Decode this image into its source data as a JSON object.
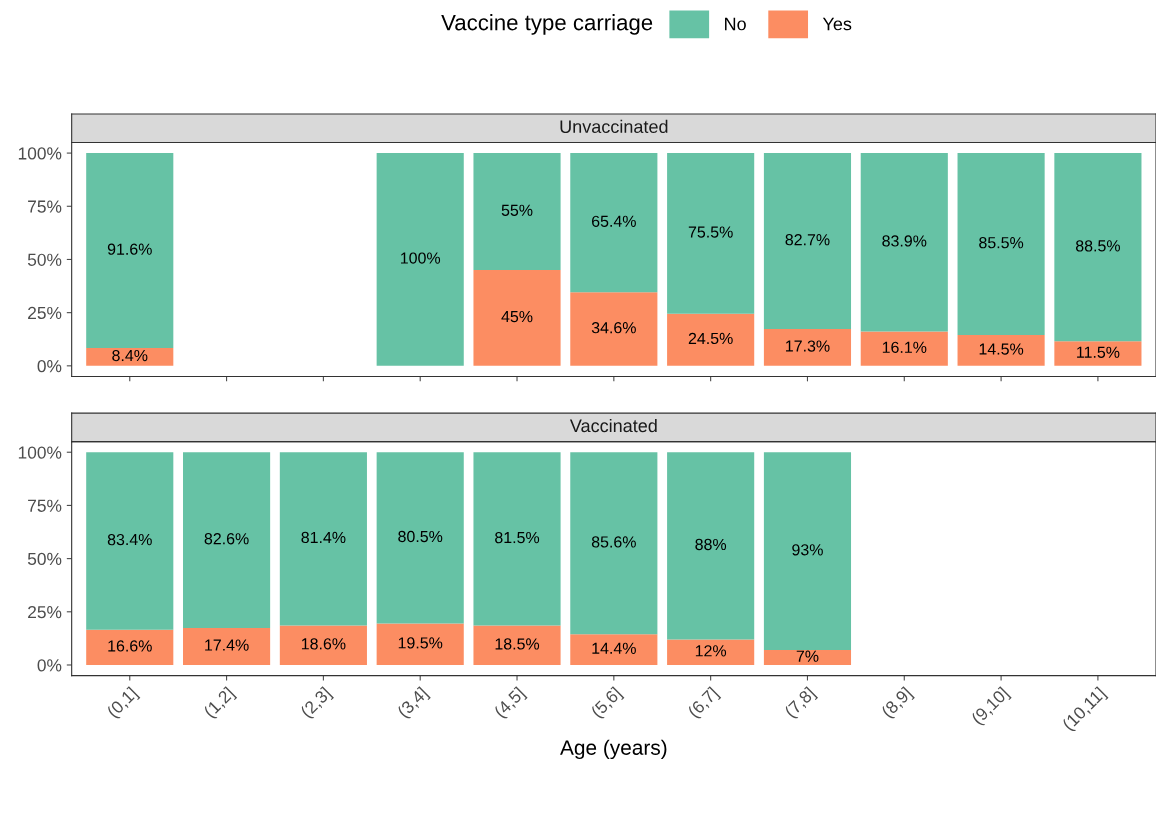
{
  "chart_data": [
    {
      "type": "bar",
      "title": "Unvaccinated",
      "stacked": true,
      "legend": "top",
      "legend_title": "Vaccine type carriage",
      "tick_labels": "y",
      "categories": [
        "(0,1]",
        "(1,2]",
        "(2,3]",
        "(3,4]",
        "(4,5]",
        "(5,6]",
        "(6,7]",
        "(7,8]",
        "(8,9]",
        "(9,10]",
        "(10,11]"
      ],
      "ylim": [
        -5,
        105
      ],
      "yticks": [
        {
          "value": 0,
          "label": "0%"
        },
        {
          "value": 25,
          "label": "25%"
        },
        {
          "value": 50,
          "label": "50%"
        },
        {
          "value": 75,
          "label": "75%"
        },
        {
          "value": 100,
          "label": "100%"
        }
      ],
      "series": [
        {
          "name": "Yes",
          "color": "#fc8d62",
          "values": [
            8.4,
            null,
            null,
            null,
            45,
            34.6,
            24.5,
            17.3,
            16.1,
            14.5,
            11.5
          ],
          "value_labels": [
            "8.4%",
            null,
            null,
            null,
            "45%",
            "34.6%",
            "24.5%",
            "17.3%",
            "16.1%",
            "14.5%",
            "11.5%"
          ]
        },
        {
          "name": "No",
          "color": "#66c2a5",
          "values": [
            91.6,
            null,
            null,
            100,
            55,
            65.4,
            75.5,
            82.7,
            83.9,
            85.5,
            88.5
          ],
          "value_labels": [
            "91.6%",
            null,
            null,
            "100%",
            "55%",
            "65.4%",
            "75.5%",
            "82.7%",
            "83.9%",
            "85.5%",
            "88.5%"
          ]
        }
      ]
    },
    {
      "type": "bar",
      "title": "Vaccinated",
      "stacked": true,
      "xlabel": "Age (years)",
      "categories": [
        "(0,1]",
        "(1,2]",
        "(2,3]",
        "(3,4]",
        "(4,5]",
        "(5,6]",
        "(6,7]",
        "(7,8]",
        "(8,9]",
        "(9,10]",
        "(10,11]"
      ],
      "ylim": [
        -5,
        105
      ],
      "yticks": [
        {
          "value": 0,
          "label": "0%"
        },
        {
          "value": 25,
          "label": "25%"
        },
        {
          "value": 50,
          "label": "50%"
        },
        {
          "value": 75,
          "label": "75%"
        },
        {
          "value": 100,
          "label": "100%"
        }
      ],
      "series": [
        {
          "name": "Yes",
          "color": "#fc8d62",
          "values": [
            16.6,
            17.4,
            18.6,
            19.5,
            18.5,
            14.4,
            12,
            7,
            null,
            null,
            null
          ],
          "value_labels": [
            "16.6%",
            "17.4%",
            "18.6%",
            "19.5%",
            "18.5%",
            "14.4%",
            "12%",
            "7%",
            null,
            null,
            null
          ]
        },
        {
          "name": "No",
          "color": "#66c2a5",
          "values": [
            83.4,
            82.6,
            81.4,
            80.5,
            81.5,
            85.6,
            88,
            93,
            null,
            null,
            null
          ],
          "value_labels": [
            "83.4%",
            "82.6%",
            "81.4%",
            "80.5%",
            "81.5%",
            "85.6%",
            "88%",
            "93%",
            null,
            null,
            null
          ]
        }
      ]
    }
  ]
}
